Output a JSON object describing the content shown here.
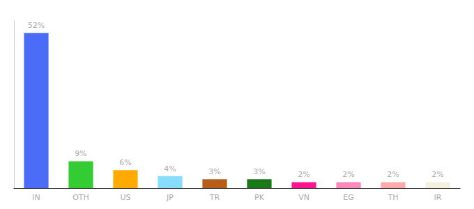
{
  "chart_data": {
    "type": "bar",
    "categories": [
      "IN",
      "OTH",
      "US",
      "JP",
      "TR",
      "PK",
      "VN",
      "EG",
      "TH",
      "IR"
    ],
    "values": [
      52,
      9,
      6,
      4,
      3,
      3,
      2,
      2,
      2,
      2
    ],
    "value_labels": [
      "52%",
      "9%",
      "6%",
      "4%",
      "3%",
      "3%",
      "2%",
      "2%",
      "2%",
      "2%"
    ],
    "colors": [
      "#4a6cf7",
      "#33cc33",
      "#ffaa00",
      "#88ddff",
      "#b85c1a",
      "#1a7a1a",
      "#ff1493",
      "#ff88bb",
      "#ffaaaa",
      "#f5f0dc"
    ],
    "ylim": [
      0,
      56
    ],
    "data_labels": true,
    "tick_labels": "x",
    "grid": false
  }
}
